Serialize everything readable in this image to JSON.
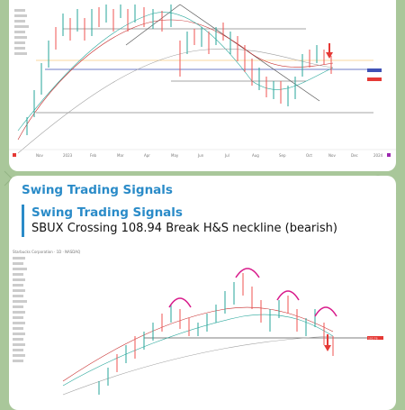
{
  "messages": [
    {
      "id": "top-chart-message",
      "x_axis_labels": [
        "Nov",
        "2023",
        "Feb",
        "Mar",
        "Apr",
        "May",
        "Jun",
        "Jul",
        "Aug",
        "Sep",
        "Oct",
        "Nov",
        "Dec",
        "2024"
      ],
      "price_tag": "107.87",
      "colors": {
        "candles_up": "#26a69a",
        "candles_down": "#ef5350",
        "arrow": "#e53935",
        "trend": "#555555"
      }
    },
    {
      "id": "signal-message",
      "sender": "Swing Trading Signals",
      "quote_title": "Swing Trading Signals",
      "quote_text": "SBUX Crossing 108.94 Break H&S neckline (bearish)",
      "chart_header": "Starbucks Corporation · 1D · NASDAQ",
      "chart_price": "102.76"
    }
  ],
  "icons": {
    "arrow": "down-arrow-icon",
    "hs": "head-and-shoulders-arc-icon"
  }
}
